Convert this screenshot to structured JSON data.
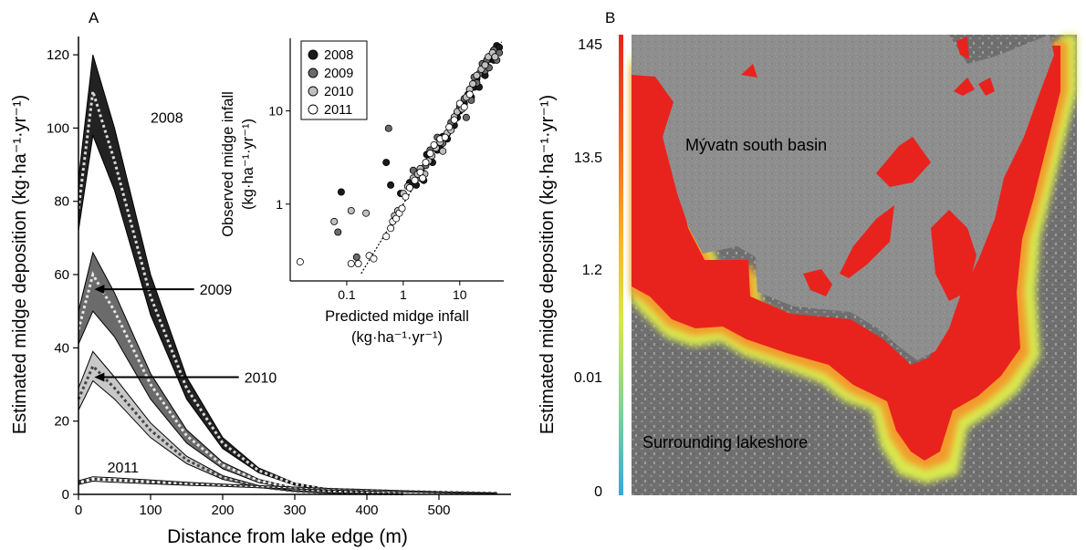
{
  "chart_data": [
    {
      "panel": "A",
      "type": "area",
      "xlabel": "Distance from lake edge (m)",
      "ylabel": "Estimated midge deposition (kg·ha⁻¹·yr⁻¹)",
      "xlim": [
        0,
        600
      ],
      "ylim": [
        0,
        125
      ],
      "xticks": [
        0,
        100,
        200,
        300,
        400,
        500
      ],
      "yticks": [
        0,
        20,
        40,
        60,
        80,
        100,
        120
      ],
      "series": [
        {
          "name": "2008",
          "color": "#222222",
          "line_color": "#d9d9d9",
          "x": [
            0,
            20,
            50,
            100,
            150,
            200,
            250,
            300,
            350,
            400,
            450
          ],
          "center": [
            78,
            110,
            91,
            54,
            29,
            14,
            6.5,
            2.8,
            1.2,
            0.5,
            0.2
          ],
          "upper": [
            86,
            120,
            100,
            60,
            32,
            15.5,
            7.2,
            3.1,
            1.4,
            0.6,
            0.2
          ],
          "lower": [
            72,
            98,
            83,
            49,
            26,
            12.5,
            5.9,
            2.5,
            1.0,
            0.4,
            0.1
          ]
        },
        {
          "name": "2009",
          "color": "#6b6b6b",
          "line_color": "#e6e6e6",
          "x": [
            0,
            20,
            50,
            100,
            150,
            200,
            250,
            300,
            350,
            400,
            450
          ],
          "center": [
            45,
            60,
            50,
            30,
            16,
            8,
            3.7,
            1.6,
            0.7,
            0.3,
            0.1
          ],
          "upper": [
            50,
            66,
            55,
            33,
            17.6,
            8.8,
            4.1,
            1.8,
            0.8,
            0.3,
            0.1
          ],
          "lower": [
            41,
            50,
            43,
            26,
            14,
            7,
            3.2,
            1.4,
            0.6,
            0.2,
            0.1
          ]
        },
        {
          "name": "2010",
          "color": "#c8c8c8",
          "line_color": "#444444",
          "x": [
            0,
            20,
            50,
            100,
            150,
            200,
            250,
            300,
            350,
            400,
            450
          ],
          "center": [
            26,
            35,
            29,
            17.5,
            9.4,
            4.6,
            2.1,
            0.9,
            0.4,
            0.2,
            0.1
          ],
          "upper": [
            29,
            39,
            32,
            19.5,
            10.4,
            5.1,
            2.4,
            1.0,
            0.4,
            0.2,
            0.1
          ],
          "lower": [
            23,
            31,
            26,
            15.5,
            8.4,
            4.1,
            1.9,
            0.8,
            0.3,
            0.1,
            0.0
          ]
        },
        {
          "name": "2011",
          "color": "#ffffff",
          "line_color": "#333333",
          "x": [
            0,
            20,
            50,
            100,
            150,
            200,
            250,
            300,
            350,
            400,
            450,
            500,
            550,
            580
          ],
          "center": [
            3.2,
            4.2,
            3.9,
            3.4,
            2.9,
            2.5,
            2.1,
            1.7,
            1.4,
            1.1,
            0.8,
            0.6,
            0.4,
            0.3
          ],
          "upper": [
            3.7,
            4.8,
            4.5,
            3.9,
            3.3,
            2.8,
            2.4,
            2.0,
            1.6,
            1.3,
            1.0,
            0.7,
            0.5,
            0.4
          ],
          "lower": [
            2.7,
            3.6,
            3.3,
            2.9,
            2.5,
            2.2,
            1.8,
            1.5,
            1.2,
            0.9,
            0.7,
            0.5,
            0.3,
            0.2
          ]
        }
      ],
      "annotations": [
        "2008",
        "2009",
        "2010",
        "2011"
      ]
    },
    {
      "panel": "A-inset",
      "type": "scatter",
      "xscale": "log",
      "yscale": "log",
      "xlabel": "Predicted midge infall",
      "xlabel_units": "(kg·ha⁻¹·yr⁻¹)",
      "ylabel": "Observed midge infall",
      "ylabel_units": "(kg·ha⁻¹·yr⁻¹)",
      "xlim": [
        0.01,
        60
      ],
      "ylim": [
        0.15,
        60
      ],
      "xticks": [
        0.1,
        1,
        10
      ],
      "xticklabels": [
        "0.1",
        "1",
        "10"
      ],
      "yticks": [
        1,
        10
      ],
      "yticklabels": [
        "1",
        "10"
      ],
      "legend": {
        "position": "top-left",
        "entries": [
          "2008",
          "2009",
          "2010",
          "2011"
        ]
      },
      "series": [
        {
          "name": "2008",
          "color": "#1a1a1a",
          "points": [
            [
              0.08,
              1.35
            ],
            [
              0.5,
              2.8
            ],
            [
              0.6,
              1.6
            ],
            [
              0.9,
              1.3
            ],
            [
              1.3,
              1.7
            ],
            [
              1.7,
              1.6
            ],
            [
              2,
              2.2
            ],
            [
              2.3,
              1.8
            ],
            [
              2.6,
              3.4
            ],
            [
              3,
              3
            ],
            [
              3.3,
              2.8
            ],
            [
              4,
              3.8
            ],
            [
              4.5,
              4.2
            ],
            [
              5,
              5.3
            ],
            [
              6,
              5
            ],
            [
              7,
              6.5
            ],
            [
              8,
              7
            ],
            [
              9,
              8.5
            ],
            [
              10,
              10
            ],
            [
              12,
              12
            ],
            [
              14,
              15
            ],
            [
              16,
              14
            ],
            [
              18,
              18
            ],
            [
              20,
              22
            ],
            [
              22,
              18
            ],
            [
              25,
              28
            ],
            [
              28,
              24
            ],
            [
              30,
              30
            ],
            [
              35,
              36
            ],
            [
              40,
              35
            ],
            [
              45,
              50
            ],
            [
              50,
              48
            ]
          ]
        },
        {
          "name": "2009",
          "color": "#6b6b6b",
          "points": [
            [
              0.07,
              0.5
            ],
            [
              0.15,
              0.27
            ],
            [
              0.55,
              6.5
            ],
            [
              1.5,
              2.3
            ],
            [
              2,
              1.9
            ],
            [
              2.5,
              2.6
            ],
            [
              3,
              3.8
            ],
            [
              4,
              5.2
            ],
            [
              5,
              4.5
            ],
            [
              6,
              5.7
            ],
            [
              7,
              7.5
            ],
            [
              8,
              8.3
            ],
            [
              9,
              9.6
            ],
            [
              10,
              11
            ],
            [
              12,
              13.5
            ],
            [
              13,
              8.5
            ],
            [
              15,
              17
            ],
            [
              16,
              13
            ],
            [
              18,
              23
            ],
            [
              20,
              20
            ],
            [
              22,
              25
            ],
            [
              25,
              32
            ],
            [
              28,
              27
            ],
            [
              30,
              35
            ],
            [
              33,
              29
            ],
            [
              37,
              40
            ],
            [
              40,
              45
            ],
            [
              45,
              35
            ],
            [
              50,
              42
            ]
          ]
        },
        {
          "name": "2010",
          "color": "#c0c0c0",
          "points": [
            [
              0.06,
              0.65
            ],
            [
              0.12,
              0.85
            ],
            [
              0.22,
              0.8
            ],
            [
              0.7,
              0.75
            ],
            [
              0.8,
              0.85
            ],
            [
              1,
              1.3
            ],
            [
              1.2,
              1.55
            ],
            [
              1.5,
              1.9
            ],
            [
              1.8,
              2.1
            ],
            [
              2,
              2.4
            ],
            [
              2.4,
              2.1
            ],
            [
              2.8,
              2.9
            ],
            [
              3.2,
              3.3
            ],
            [
              3.8,
              4
            ],
            [
              4.5,
              4.6
            ],
            [
              5,
              3.7
            ],
            [
              6,
              5.8
            ],
            [
              7,
              6.2
            ],
            [
              8,
              8.6
            ],
            [
              9,
              9.8
            ],
            [
              11,
              10.5
            ],
            [
              13,
              14
            ],
            [
              15,
              17
            ],
            [
              17,
              19.5
            ],
            [
              20,
              24
            ],
            [
              24,
              28
            ],
            [
              28,
              31
            ],
            [
              32,
              38
            ],
            [
              38,
              42
            ],
            [
              42,
              38
            ]
          ]
        },
        {
          "name": "2011",
          "color": "#ffffff",
          "points": [
            [
              0.015,
              0.24
            ],
            [
              0.12,
              0.23
            ],
            [
              0.16,
              0.23
            ],
            [
              0.25,
              0.28
            ],
            [
              0.3,
              0.26
            ],
            [
              0.5,
              0.45
            ],
            [
              0.6,
              0.55
            ],
            [
              0.65,
              0.65
            ],
            [
              0.75,
              0.7
            ],
            [
              0.85,
              0.8
            ],
            [
              0.95,
              0.9
            ],
            [
              1.1,
              1.2
            ],
            [
              1.3,
              1.5
            ],
            [
              1.6,
              1.8
            ],
            [
              2,
              2.2
            ],
            [
              2.2,
              1.9
            ],
            [
              2.5,
              2.8
            ],
            [
              3,
              3.5
            ],
            [
              3.5,
              4.3
            ],
            [
              4.5,
              5
            ],
            [
              5.5,
              5.2
            ],
            [
              6.5,
              6.7
            ],
            [
              8,
              8
            ],
            [
              10,
              12
            ],
            [
              12,
              11
            ],
            [
              15,
              15
            ]
          ]
        }
      ]
    },
    {
      "panel": "B",
      "type": "heatmap",
      "colorbar_label": "Estimated midge deposition (kg·ha⁻¹·yr⁻¹)",
      "colorbar_ticks": [
        "145",
        "13.5",
        "1.2",
        "0.01",
        "0"
      ],
      "colorbar_colors": [
        "#e8231d",
        "#f26a1f",
        "#f7b52a",
        "#d8e84a",
        "#7fd09a",
        "#3aa8d8"
      ],
      "labels": [
        "Mývatn south basin",
        "Surrounding lakeshore"
      ]
    }
  ],
  "panel_labels": {
    "a": "A",
    "b": "B"
  }
}
